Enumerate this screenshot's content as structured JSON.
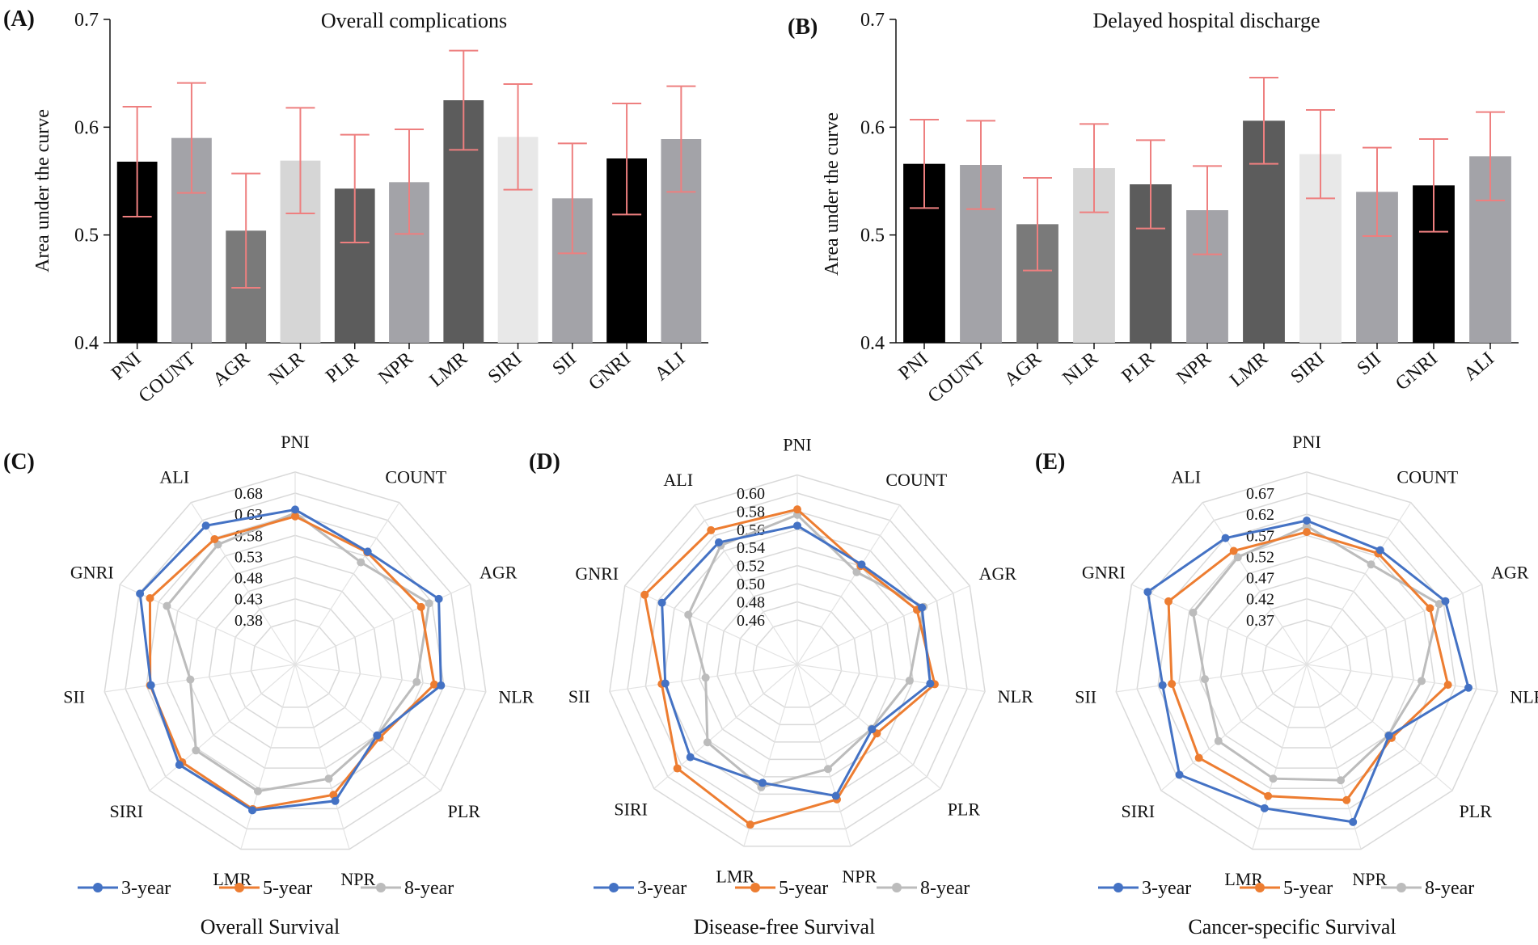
{
  "chart_data": [
    {
      "panel": "(A)",
      "type": "bar",
      "title": "Overall complications",
      "ylabel": "Area under the curve",
      "ylim": [
        0.4,
        0.7
      ],
      "yticks": [
        "0.4",
        "0.5",
        "0.6",
        "0.7"
      ],
      "categories": [
        "PNI",
        "COUNT",
        "AGR",
        "NLR",
        "PLR",
        "NPR",
        "LMR",
        "SIRI",
        "SII",
        "GNRI",
        "ALI"
      ],
      "values": [
        0.568,
        0.59,
        0.504,
        0.569,
        0.543,
        0.549,
        0.625,
        0.591,
        0.534,
        0.571,
        0.589
      ],
      "err_low": [
        0.517,
        0.539,
        0.451,
        0.52,
        0.493,
        0.501,
        0.579,
        0.542,
        0.483,
        0.519,
        0.54
      ],
      "err_high": [
        0.619,
        0.641,
        0.557,
        0.618,
        0.593,
        0.598,
        0.671,
        0.64,
        0.585,
        0.622,
        0.638
      ],
      "bar_colors": [
        "#000000",
        "#a3a3a8",
        "#7a7a7a",
        "#d6d6d6",
        "#5c5c5c",
        "#a3a3a8",
        "#5c5c5c",
        "#e8e8e8",
        "#a3a3a8",
        "#000000",
        "#a3a3a8"
      ],
      "error_color": "#ee7f7f"
    },
    {
      "panel": "(B)",
      "type": "bar",
      "title": "Delayed hospital discharge",
      "ylabel": "Area under the curve",
      "ylim": [
        0.4,
        0.7
      ],
      "yticks": [
        "0.4",
        "0.5",
        "0.6",
        "0.7"
      ],
      "categories": [
        "PNI",
        "COUNT",
        "AGR",
        "NLR",
        "PLR",
        "NPR",
        "LMR",
        "SIRI",
        "SII",
        "GNRI",
        "ALI"
      ],
      "values": [
        0.566,
        0.565,
        0.51,
        0.562,
        0.547,
        0.523,
        0.606,
        0.575,
        0.54,
        0.546,
        0.573
      ],
      "err_low": [
        0.525,
        0.524,
        0.467,
        0.521,
        0.506,
        0.482,
        0.566,
        0.534,
        0.499,
        0.503,
        0.532
      ],
      "err_high": [
        0.607,
        0.606,
        0.553,
        0.603,
        0.588,
        0.564,
        0.646,
        0.616,
        0.581,
        0.589,
        0.614
      ],
      "bar_colors": [
        "#000000",
        "#a3a3a8",
        "#7a7a7a",
        "#d6d6d6",
        "#5c5c5c",
        "#a3a3a8",
        "#5c5c5c",
        "#e8e8e8",
        "#a3a3a8",
        "#000000",
        "#a3a3a8"
      ],
      "error_color": "#ee7f7f"
    },
    {
      "panel": "(C)",
      "type": "radar",
      "title": "Overall Survival",
      "axes": [
        "PNI",
        "COUNT",
        "AGR",
        "NLR",
        "PLR",
        "NPR",
        "LMR",
        "SIRI",
        "SII",
        "GNRI",
        "ALI"
      ],
      "rings": [
        0.38,
        0.43,
        0.48,
        0.53,
        0.58,
        0.63,
        0.68
      ],
      "ring_labels": [
        "0.38",
        "0.43",
        "0.48",
        "0.53",
        "0.58",
        "0.63",
        "0.68"
      ],
      "series": [
        {
          "name": "3-year",
          "color": "#4472c4",
          "values": [
            0.641,
            0.592,
            0.648,
            0.623,
            0.531,
            0.611,
            0.634,
            0.637,
            0.619,
            0.678,
            0.665
          ]
        },
        {
          "name": "5-year",
          "color": "#ed7d31",
          "values": [
            0.625,
            0.59,
            0.602,
            0.607,
            0.539,
            0.596,
            0.631,
            0.628,
            0.621,
            0.652,
            0.627
          ]
        },
        {
          "name": "8-year",
          "color": "#bcbcbc",
          "values": [
            0.633,
            0.562,
            0.623,
            0.565,
            0.531,
            0.556,
            0.587,
            0.585,
            0.525,
            0.608,
            0.612
          ]
        }
      ]
    },
    {
      "panel": "(D)",
      "type": "radar",
      "title": "Disease-free Survival",
      "axes": [
        "PNI",
        "COUNT",
        "AGR",
        "NLR",
        "PLR",
        "NPR",
        "LMR",
        "SIRI",
        "SII",
        "GNRI",
        "ALI"
      ],
      "rings": [
        0.46,
        0.48,
        0.5,
        0.52,
        0.54,
        0.56,
        0.58,
        0.6
      ],
      "ring_labels": [
        "0.46",
        "0.48",
        "0.50",
        "0.52",
        "0.54",
        "0.56",
        "0.58",
        "0.60"
      ],
      "series": [
        {
          "name": "3-year",
          "color": "#4472c4",
          "values": [
            0.564,
            0.542,
            0.562,
            0.559,
            0.52,
            0.562,
            0.547,
            0.567,
            0.558,
            0.575,
            0.571
          ]
        },
        {
          "name": "5-year",
          "color": "#ed7d31",
          "values": [
            0.582,
            0.54,
            0.556,
            0.564,
            0.527,
            0.566,
            0.595,
            0.586,
            0.562,
            0.596,
            0.587
          ]
        },
        {
          "name": "8-year",
          "color": "#bcbcbc",
          "values": [
            0.576,
            0.532,
            0.564,
            0.536,
            0.519,
            0.531,
            0.552,
            0.542,
            0.513,
            0.543,
            0.567
          ]
        }
      ]
    },
    {
      "panel": "(E)",
      "type": "radar",
      "title": "Cancer-specific Survival",
      "axes": [
        "PNI",
        "COUNT",
        "AGR",
        "NLR",
        "PLR",
        "NPR",
        "LMR",
        "SIRI",
        "SII",
        "GNRI",
        "ALI"
      ],
      "rings": [
        0.37,
        0.42,
        0.47,
        0.52,
        0.57,
        0.62,
        0.67
      ],
      "ring_labels": [
        "0.37",
        "0.42",
        "0.47",
        "0.52",
        "0.57",
        "0.62",
        "0.67"
      ],
      "series": [
        {
          "name": "3-year",
          "color": "#4472c4",
          "values": [
            0.605,
            0.586,
            0.625,
            0.651,
            0.522,
            0.653,
            0.619,
            0.663,
            0.609,
            0.678,
            0.62
          ]
        },
        {
          "name": "5-year",
          "color": "#ed7d31",
          "values": [
            0.578,
            0.577,
            0.585,
            0.602,
            0.53,
            0.599,
            0.589,
            0.602,
            0.587,
            0.624,
            0.584
          ]
        },
        {
          "name": "8-year",
          "color": "#bcbcbc",
          "values": [
            0.592,
            0.546,
            0.609,
            0.539,
            0.52,
            0.55,
            0.546,
            0.541,
            0.508,
            0.56,
            0.566
          ]
        }
      ]
    }
  ]
}
